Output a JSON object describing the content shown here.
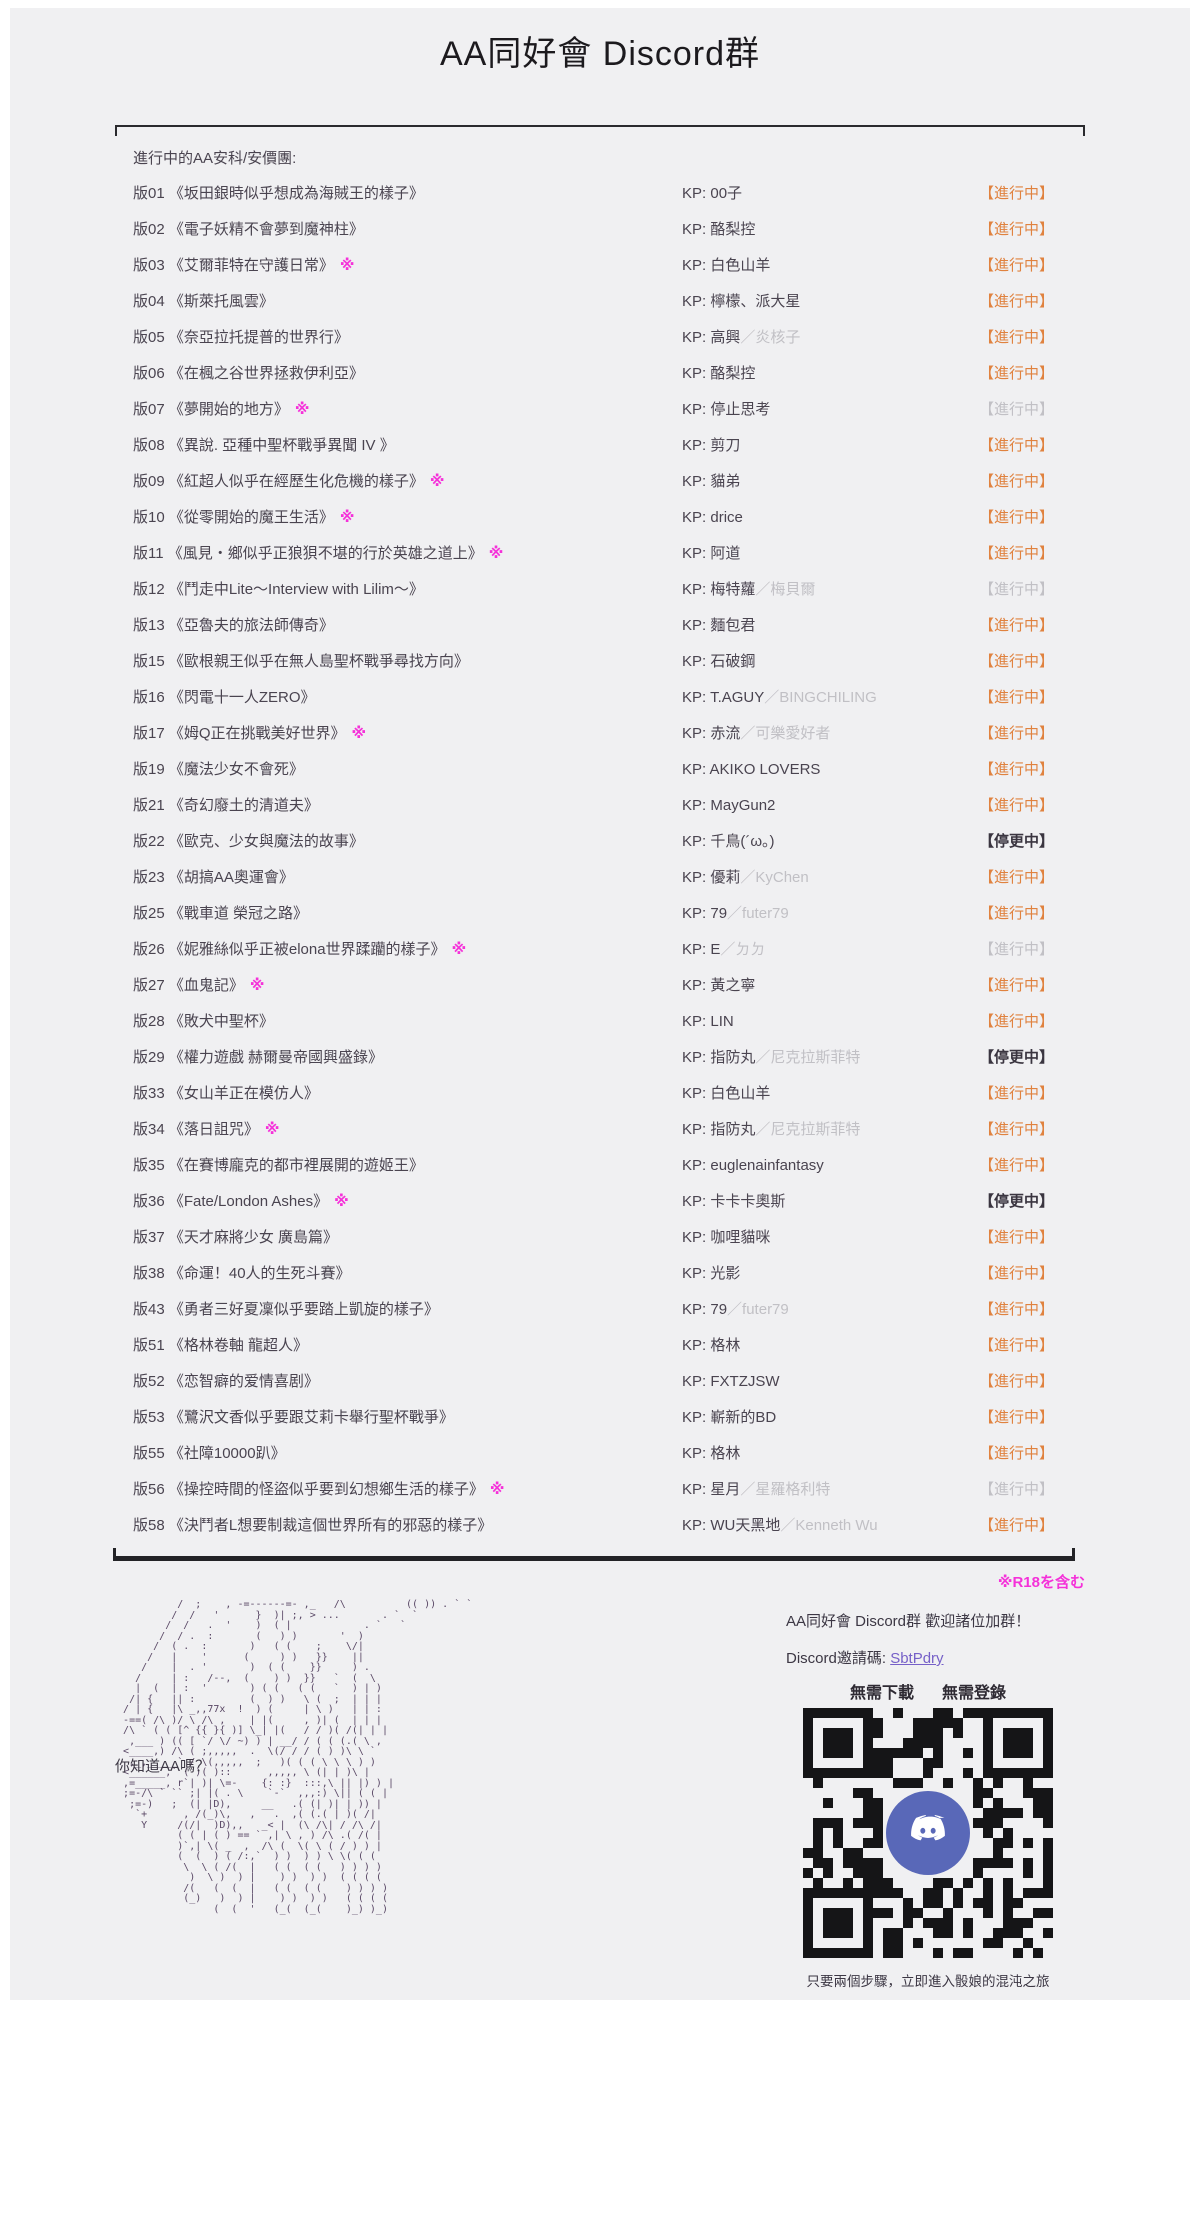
{
  "page": {
    "title": "AA同好會 Discord群",
    "section_label": "進行中的AA安科/安價團:",
    "kp_prefix": "KP: ",
    "kp_separator": "／",
    "r18_mark": "※",
    "r18_note": "※R18を含む"
  },
  "rows": [
    {
      "id": "版01",
      "title": "《坂田銀時似乎想成為海賊王的樣子》",
      "r18": false,
      "kp": "00子",
      "kp_sub": "",
      "status": "【進行中】",
      "state": "active"
    },
    {
      "id": "版02",
      "title": "《電子妖精不會夢到魔神柱》",
      "r18": false,
      "kp": "酪梨控",
      "kp_sub": "",
      "status": "【進行中】",
      "state": "active"
    },
    {
      "id": "版03",
      "title": "《艾爾菲特在守護日常》",
      "r18": true,
      "kp": "白色山羊",
      "kp_sub": "",
      "status": "【進行中】",
      "state": "active"
    },
    {
      "id": "版04",
      "title": "《斯萊托風雲》",
      "r18": false,
      "kp": "檸檬、派大星",
      "kp_sub": "",
      "status": "【進行中】",
      "state": "active"
    },
    {
      "id": "版05",
      "title": "《奈亞拉托提普的世界行》",
      "r18": false,
      "kp": "高興",
      "kp_sub": "炎核子",
      "status": "【進行中】",
      "state": "active"
    },
    {
      "id": "版06",
      "title": "《在楓之谷世界拯救伊利亞》",
      "r18": false,
      "kp": "酪梨控",
      "kp_sub": "",
      "status": "【進行中】",
      "state": "active"
    },
    {
      "id": "版07",
      "title": "《夢開始的地方》",
      "r18": true,
      "kp": "停止思考",
      "kp_sub": "",
      "status": "【進行中】",
      "state": "dim"
    },
    {
      "id": "版08",
      "title": "《異說. 亞種中聖杯戰爭異聞 IV 》",
      "r18": false,
      "kp": "剪刀",
      "kp_sub": "",
      "status": "【進行中】",
      "state": "active"
    },
    {
      "id": "版09",
      "title": "《紅超人似乎在經歷生化危機的樣子》",
      "r18": true,
      "kp": "貓弟",
      "kp_sub": "",
      "status": "【進行中】",
      "state": "active"
    },
    {
      "id": "版10",
      "title": "《從零開始的魔王生活》",
      "r18": true,
      "kp": "drice",
      "kp_sub": "",
      "status": "【進行中】",
      "state": "active"
    },
    {
      "id": "版11",
      "title": "《風見・鄉似乎正狼狽不堪的行於英雄之道上》",
      "r18": true,
      "kp": "阿道",
      "kp_sub": "",
      "status": "【進行中】",
      "state": "active"
    },
    {
      "id": "版12",
      "title": "《鬥走中Lite～Interview with Lilim～》",
      "r18": false,
      "kp": "梅特蘿",
      "kp_sub": "梅貝爾",
      "status": "【進行中】",
      "state": "dim"
    },
    {
      "id": "版13",
      "title": "《亞魯夫的旅法師傳奇》",
      "r18": false,
      "kp": "麵包君",
      "kp_sub": "",
      "status": "【進行中】",
      "state": "active"
    },
    {
      "id": "版15",
      "title": "《歐根親王似乎在無人島聖杯戰爭尋找方向》",
      "r18": false,
      "kp": "石破鋼",
      "kp_sub": "",
      "status": "【進行中】",
      "state": "active"
    },
    {
      "id": "版16",
      "title": "《閃電十一人ZERO》",
      "r18": false,
      "kp": "T.AGUY",
      "kp_sub": "BINGCHILING",
      "status": "【進行中】",
      "state": "active"
    },
    {
      "id": "版17",
      "title": "《姆Q正在挑戰美好世界》",
      "r18": true,
      "kp": "赤流",
      "kp_sub": "可樂愛好者",
      "status": "【進行中】",
      "state": "active"
    },
    {
      "id": "版19",
      "title": "《魔法少女不會死》",
      "r18": false,
      "kp": "AKIKO LOVERS",
      "kp_sub": "",
      "status": "【進行中】",
      "state": "active"
    },
    {
      "id": "版21",
      "title": "《奇幻廢土的清道夫》",
      "r18": false,
      "kp": "MayGun2",
      "kp_sub": "",
      "status": "【進行中】",
      "state": "active"
    },
    {
      "id": "版22",
      "title": "《歐克、少女與魔法的故事》",
      "r18": false,
      "kp": "千鳥(´ω。)",
      "kp_sub": "",
      "status": "【停更中】",
      "state": "paused"
    },
    {
      "id": "版23",
      "title": "《胡搞AA奧運會》",
      "r18": false,
      "kp": "優莉",
      "kp_sub": "KyChen",
      "status": "【進行中】",
      "state": "active"
    },
    {
      "id": "版25",
      "title": "《戰車道 榮冠之路》",
      "r18": false,
      "kp": "79",
      "kp_sub": "futer79",
      "status": "【進行中】",
      "state": "active"
    },
    {
      "id": "版26",
      "title": "《妮雅絲似乎正被elona世界蹂躪的樣子》",
      "r18": true,
      "kp": "E",
      "kp_sub": "ㄉㄉ",
      "status": "【進行中】",
      "state": "dim"
    },
    {
      "id": "版27",
      "title": "《血鬼記》",
      "r18": true,
      "kp": "黃之寧",
      "kp_sub": "",
      "status": "【進行中】",
      "state": "active"
    },
    {
      "id": "版28",
      "title": "《敗犬中聖杯》",
      "r18": false,
      "kp": "LIN",
      "kp_sub": "",
      "status": "【進行中】",
      "state": "active"
    },
    {
      "id": "版29",
      "title": "《權力遊戲 赫爾曼帝國興盛錄》",
      "r18": false,
      "kp": "指防丸",
      "kp_sub": "尼克拉斯菲特",
      "status": "【停更中】",
      "state": "paused"
    },
    {
      "id": "版33",
      "title": "《女山羊正在模仿人》",
      "r18": false,
      "kp": "白色山羊",
      "kp_sub": "",
      "status": "【進行中】",
      "state": "active"
    },
    {
      "id": "版34",
      "title": "《落日詛咒》",
      "r18": true,
      "kp": "指防丸",
      "kp_sub": "尼克拉斯菲特",
      "status": "【進行中】",
      "state": "active"
    },
    {
      "id": "版35",
      "title": "《在賽博龐克的都市裡展開的遊姬王》",
      "r18": false,
      "kp": "euglenainfantasy",
      "kp_sub": "",
      "status": "【進行中】",
      "state": "active"
    },
    {
      "id": "版36",
      "title": "《Fate/London Ashes》",
      "r18": true,
      "kp": "卡卡卡奧斯",
      "kp_sub": "",
      "status": "【停更中】",
      "state": "paused"
    },
    {
      "id": "版37",
      "title": "《天才麻將少女 廣島篇》",
      "r18": false,
      "kp": "咖哩貓咪",
      "kp_sub": "",
      "status": "【進行中】",
      "state": "active"
    },
    {
      "id": "版38",
      "title": "《命運！40人的生死斗賽》",
      "r18": false,
      "kp": "光影",
      "kp_sub": "",
      "status": "【進行中】",
      "state": "active"
    },
    {
      "id": "版43",
      "title": "《勇者三好夏凜似乎要踏上凱旋的樣子》",
      "r18": false,
      "kp": "79",
      "kp_sub": "futer79",
      "status": "【進行中】",
      "state": "active"
    },
    {
      "id": "版51",
      "title": "《格林卷軸 龍超人》",
      "r18": false,
      "kp": "格林",
      "kp_sub": "",
      "status": "【進行中】",
      "state": "active"
    },
    {
      "id": "版52",
      "title": "《恋智癖的爱情喜剧》",
      "r18": false,
      "kp": "FXTZJSW",
      "kp_sub": "",
      "status": "【進行中】",
      "state": "active"
    },
    {
      "id": "版53",
      "title": "《鷺沢文香似乎要跟艾莉卡舉行聖杯戰爭》",
      "r18": false,
      "kp": "嶄新的BD",
      "kp_sub": "",
      "status": "【進行中】",
      "state": "active"
    },
    {
      "id": "版55",
      "title": "《社障10000趴》",
      "r18": false,
      "kp": "格林",
      "kp_sub": "",
      "status": "【進行中】",
      "state": "active"
    },
    {
      "id": "版56",
      "title": "《操控時間的怪盜似乎要到幻想鄉生活的樣子》",
      "r18": true,
      "kp": "星月",
      "kp_sub": "星羅格利特",
      "status": "【進行中】",
      "state": "dim"
    },
    {
      "id": "版58",
      "title": "《決鬥者L想要制裁這個世界所有的邪惡的樣子》",
      "r18": false,
      "kp": "WU天黑地",
      "kp_sub": "Kenneth Wu",
      "status": "【進行中】",
      "state": "active"
    }
  ],
  "footer": {
    "ascii_caption": "你知道AA嗎？",
    "invite_heading": "AA同好會 Discord群  歡迎諸位加群！",
    "invite_code_label": "Discord邀請碼: ",
    "invite_code": "SbtPdry",
    "no_download": "無需下載",
    "no_register": "無需登錄",
    "qr_caption": "只要兩個步驟，立即進入骰娘的混沌之旅",
    "qr_icon": "discord-logo",
    "ascii_art": [
      "            /  ;    , -=------=- ,_   /\\          (( )) . ` `",
      "           /  /   '      }  )| ;, > ...       . `  ` ",
      "          /  /   .  '    )  ( |            . `   `",
      "         /  / .  :       (   ) )       '  )",
      "        /  ( .  :       )   ( (    ;    \\/|",
      "       /   |    '      (     ) )   }}    ||",
      "      /    |  . '       )  ( (    }}     ) .",
      "     /     | :   /--,  (    ) )  }}   `  (  \\",
      "     |  (  | :  '       ) ( (   ( (   `  ) | )",
      "    /| {   || :         (  ) )   \\ (  ;  | | |",
      "   / | {   |\\ _,,77x  !  ) (     | \\ )   | | :",
      "   -==( /\\ )/ \\ /\\ ,    | |(     , )| (  | | |",
      "   /\\ ` ( ( [^ {{ }{ )] \\_| |(   / / )( /(| | |",
      "    ,___ ) (( [ `/ \\/ ~) ) | __/ / ( ( (.( \\ ,",
      "   <____,) /\\ ( ;,,,,,  .  \\(/ / / ( ) )\\ \\ `",
      "    ,_,____ ` / \\(,,,,,  ;   )( ( ( \\ \\ \\ ) )",
      "   <______,` ( )( )::      ,,,,, \\ (| | )\\ |",
      "   ,=_____, r`| )| \\=-    {: :}  :::,\\ || |) ) |",
      "   ;=-/\\ ` `` ;| |( . \\    `-`  ,,,:) \\|| ( ( |",
      "    ;=-)   ;  (| |D),     __   .( (| )| | )) |",
      "     `+      , /(_)\\,   ,   .  ,( (.( | )( /|",
      "      Y     /(/|  )D),,   _< |  (\\ /\\| / /\\ /|",
      "            ( ( | ( ) == ` ,| \\ , ) /\\ .( /( |",
      "            )`,| \\( _  ,  /\\ (  \\( \\ ( / ) ) |",
      "            (  (  ) ( /:,`  ) )  ) ) \\ \\( ( (",
      "             \\  \\ ( /(  |   ( (  ( (   ) ) ) )",
      "              )  \\ )  ) |    ) )  ) )  ( ( ( (",
      "             /(   (  (  |   ( (  ( (    ) ) ) )",
      "             (_)   )  ) |    ) )  ) )   ( ( ( (",
      "                  (  (  '   (_(  (_(    )_) )_)"
    ]
  },
  "colors": {
    "card_background": "#f0f0f2",
    "status_active": "#e0823f",
    "status_dim": "#c1c0c5",
    "status_paused": "#3a3540",
    "r18_magenta": "#f531d9",
    "link_purple": "#7660c8",
    "ascii_art": "#5a4866",
    "discord_blurple": "#5968b8"
  }
}
